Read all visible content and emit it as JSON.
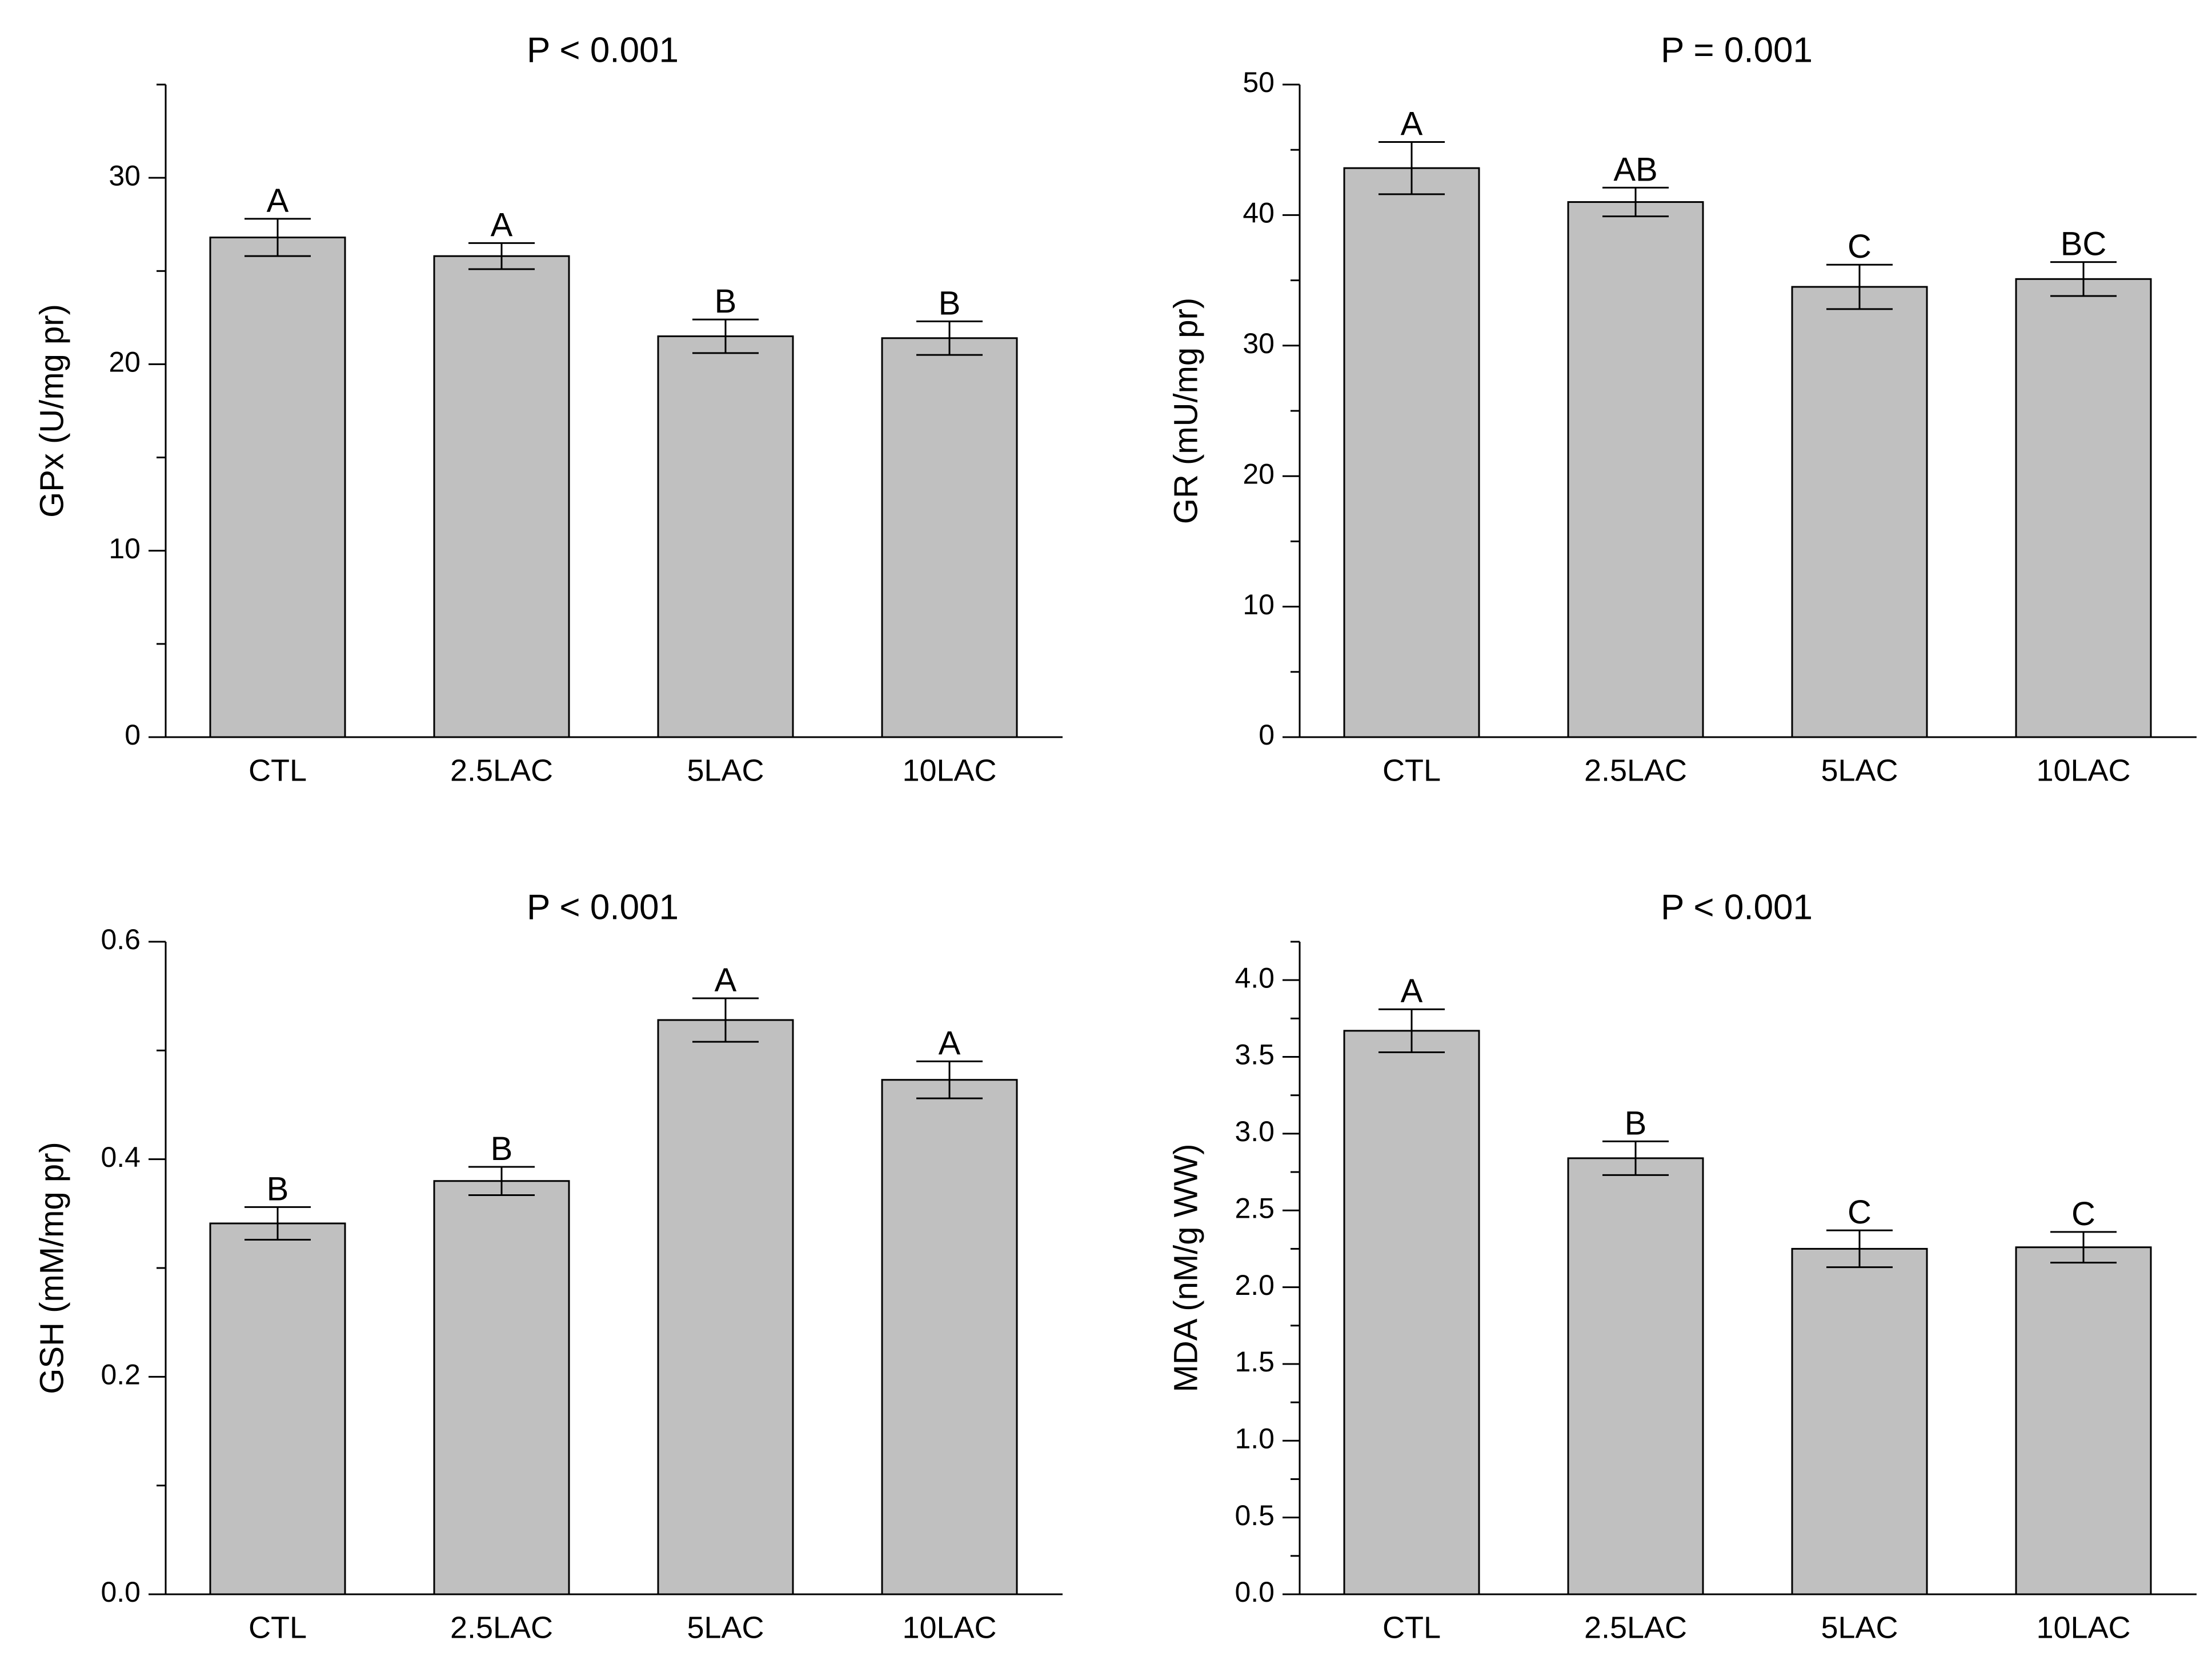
{
  "figure": {
    "bar_fill": "#c0c0c0",
    "bar_stroke": "#000000",
    "axis_color": "#000000"
  },
  "chart_data": [
    {
      "type": "bar",
      "title": "P < 0.001",
      "xlabel": "",
      "ylabel": "GPx (U/mg pr)",
      "categories": [
        "CTL",
        "2.5LAC",
        "5LAC",
        "10LAC"
      ],
      "values": [
        26.8,
        25.8,
        21.5,
        21.4
      ],
      "errors": [
        1.0,
        0.7,
        0.9,
        0.9
      ],
      "significance": [
        "A",
        "A",
        "B",
        "B"
      ],
      "ylim": [
        0,
        35
      ],
      "yticks": [
        0,
        10,
        20,
        30
      ],
      "ytick_labels": [
        "0",
        "10",
        "20",
        "30"
      ],
      "yminor_step": 5
    },
    {
      "type": "bar",
      "title": "P = 0.001",
      "xlabel": "",
      "ylabel": "GR (mU/mg pr)",
      "categories": [
        "CTL",
        "2.5LAC",
        "5LAC",
        "10LAC"
      ],
      "values": [
        43.6,
        41.0,
        34.5,
        35.1
      ],
      "errors": [
        2.0,
        1.1,
        1.7,
        1.3
      ],
      "significance": [
        "A",
        "AB",
        "C",
        "BC"
      ],
      "ylim": [
        0,
        50
      ],
      "yticks": [
        0,
        10,
        20,
        30,
        40,
        50
      ],
      "ytick_labels": [
        "0",
        "10",
        "20",
        "30",
        "40",
        "50"
      ],
      "yminor_step": 5
    },
    {
      "type": "bar",
      "title": "P < 0.001",
      "xlabel": "",
      "ylabel": "GSH (mM/mg pr)",
      "categories": [
        "CTL",
        "2.5LAC",
        "5LAC",
        "10LAC"
      ],
      "values": [
        0.341,
        0.38,
        0.528,
        0.473
      ],
      "errors": [
        0.015,
        0.013,
        0.02,
        0.017
      ],
      "significance": [
        "B",
        "B",
        "A",
        "A"
      ],
      "ylim": [
        0,
        0.6
      ],
      "yticks": [
        0,
        0.2,
        0.4,
        0.6
      ],
      "ytick_labels": [
        "0.0",
        "0.2",
        "0.4",
        "0.6"
      ],
      "yminor_step": 0.1
    },
    {
      "type": "bar",
      "title": "P < 0.001",
      "xlabel": "",
      "ylabel": "MDA (nM/g WW)",
      "categories": [
        "CTL",
        "2.5LAC",
        "5LAC",
        "10LAC"
      ],
      "values": [
        3.67,
        2.84,
        2.25,
        2.26
      ],
      "errors": [
        0.14,
        0.11,
        0.12,
        0.1
      ],
      "significance": [
        "A",
        "B",
        "C",
        "C"
      ],
      "ylim": [
        0,
        4.25
      ],
      "yticks": [
        0,
        0.5,
        1.0,
        1.5,
        2.0,
        2.5,
        3.0,
        3.5,
        4.0
      ],
      "ytick_labels": [
        "0.0",
        "0.5",
        "1.0",
        "1.5",
        "2.0",
        "2.5",
        "3.0",
        "3.5",
        "4.0"
      ],
      "yminor_step": 0.25
    }
  ]
}
